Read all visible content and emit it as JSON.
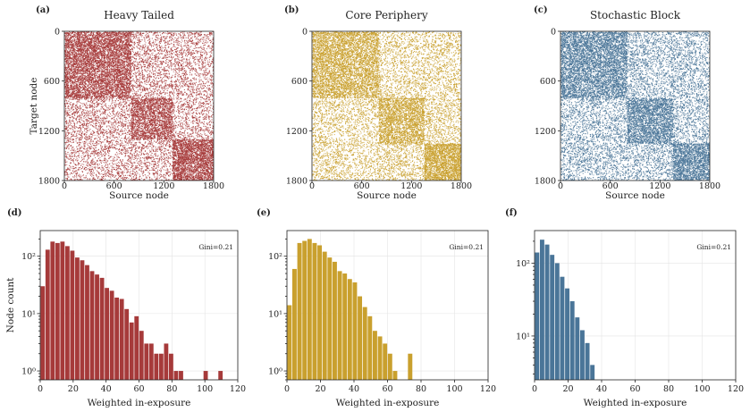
{
  "figure": {
    "colors": {
      "heavy": "#a63a3a",
      "core": "#c9a02e",
      "block": "#4a7598"
    }
  },
  "chart_data": [
    {
      "type": "scatter",
      "panel": "(a)",
      "title": "Heavy Tailed",
      "xlabel": "Source node",
      "ylabel": "Target node",
      "xlim": [
        0,
        1800
      ],
      "ylim": [
        1800,
        0
      ],
      "xticks": [
        "0",
        "600",
        "1200",
        "1800"
      ],
      "yticks": [
        "0",
        "600",
        "1200",
        "1800"
      ],
      "color": "#a63a3a",
      "blocks": [
        {
          "range": [
            0,
            800
          ],
          "within_density": 0.85,
          "between_density": 0.45
        },
        {
          "range": [
            800,
            1300
          ],
          "within_density": 0.8,
          "between_density": 0.45
        },
        {
          "range": [
            1300,
            1800
          ],
          "within_density": 0.95,
          "between_density": 0.4
        }
      ]
    },
    {
      "type": "scatter",
      "panel": "(b)",
      "title": "Core Periphery",
      "xlabel": "Source node",
      "ylabel": "",
      "xlim": [
        0,
        1800
      ],
      "ylim": [
        1800,
        0
      ],
      "xticks": [
        "0",
        "600",
        "1200",
        "1800"
      ],
      "yticks": [
        "0",
        "600",
        "1200",
        "1800"
      ],
      "color": "#c9a02e",
      "blocks": [
        {
          "range": [
            0,
            800
          ],
          "within_density": 0.7,
          "between_density": 0.4
        },
        {
          "range": [
            800,
            1350
          ],
          "within_density": 0.75,
          "between_density": 0.45
        },
        {
          "range": [
            1350,
            1800
          ],
          "within_density": 1.0,
          "between_density": 0.5
        }
      ]
    },
    {
      "type": "scatter",
      "panel": "(c)",
      "title": "Stochastic Block",
      "xlabel": "Source node",
      "ylabel": "",
      "xlim": [
        0,
        1800
      ],
      "ylim": [
        1800,
        0
      ],
      "xticks": [
        "0",
        "600",
        "1200",
        "1800"
      ],
      "yticks": [
        "0",
        "600",
        "1200",
        "1800"
      ],
      "color": "#4a7598",
      "blocks": [
        {
          "range": [
            0,
            800
          ],
          "within_density": 0.75,
          "between_density": 0.45
        },
        {
          "range": [
            800,
            1350
          ],
          "within_density": 0.8,
          "between_density": 0.45
        },
        {
          "range": [
            1350,
            1800
          ],
          "within_density": 0.85,
          "between_density": 0.45
        }
      ]
    },
    {
      "type": "bar",
      "panel": "(d)",
      "xlabel": "Weighted in-exposure",
      "ylabel": "Node count",
      "xlim": [
        0,
        120
      ],
      "yscale": "log",
      "ylim": [
        0.7,
        280
      ],
      "xticks": [
        0,
        20,
        40,
        60,
        80,
        100,
        120
      ],
      "yticks": [
        {
          "value": 1,
          "label": "10⁰"
        },
        {
          "value": 10,
          "label": "10¹"
        },
        {
          "value": 100,
          "label": "10²"
        }
      ],
      "annotation": "Gini=0.21",
      "color": "#a63a3a",
      "bin_width": 3,
      "x": [
        1.5,
        4.5,
        7.5,
        10.5,
        13.5,
        16.5,
        19.5,
        22.5,
        25.5,
        28.5,
        31.5,
        34.5,
        37.5,
        40.5,
        43.5,
        46.5,
        49.5,
        52.5,
        55.5,
        58.5,
        61.5,
        64.5,
        67.5,
        70.5,
        73.5,
        76.5,
        79.5,
        82.5,
        85.5,
        100.5,
        109.5
      ],
      "values": [
        30,
        130,
        180,
        170,
        180,
        150,
        125,
        95,
        85,
        70,
        55,
        48,
        42,
        28,
        25,
        19,
        18,
        12,
        7,
        9,
        5,
        3,
        3,
        2,
        2,
        3,
        2,
        1,
        1,
        1,
        1
      ]
    },
    {
      "type": "bar",
      "panel": "(e)",
      "xlabel": "Weighted in-exposure",
      "ylabel": "",
      "xlim": [
        0,
        120
      ],
      "yscale": "log",
      "ylim": [
        0.7,
        280
      ],
      "xticks": [
        0,
        20,
        40,
        60,
        80,
        100,
        120
      ],
      "yticks": [
        {
          "value": 1,
          "label": "10⁰"
        },
        {
          "value": 10,
          "label": "10¹"
        },
        {
          "value": 100,
          "label": "10²"
        }
      ],
      "annotation": "Gini=0.21",
      "color": "#c9a02e",
      "bin_width": 3,
      "x": [
        1.5,
        4.5,
        7.5,
        10.5,
        13.5,
        16.5,
        19.5,
        22.5,
        25.5,
        28.5,
        31.5,
        34.5,
        37.5,
        40.5,
        43.5,
        46.5,
        49.5,
        52.5,
        55.5,
        58.5,
        61.5,
        64.5,
        73.5
      ],
      "values": [
        14,
        60,
        170,
        185,
        200,
        170,
        155,
        120,
        95,
        80,
        55,
        50,
        40,
        35,
        20,
        13,
        9,
        5,
        4,
        3,
        2,
        1,
        2
      ]
    },
    {
      "type": "bar",
      "panel": "(f)",
      "xlabel": "Weighted in-exposure",
      "ylabel": "",
      "xlim": [
        0,
        120
      ],
      "yscale": "log",
      "ylim": [
        2.5,
        280
      ],
      "xticks": [
        0,
        20,
        40,
        60,
        80,
        100,
        120
      ],
      "yticks": [
        {
          "value": 10,
          "label": "10¹"
        },
        {
          "value": 100,
          "label": "10²"
        }
      ],
      "annotation": "Gini=0.21",
      "color": "#4a7598",
      "bin_width": 3,
      "x": [
        1.5,
        4.5,
        7.5,
        10.5,
        13.5,
        16.5,
        19.5,
        22.5,
        25.5,
        28.5,
        31.5,
        34.5
      ],
      "values": [
        140,
        210,
        180,
        130,
        100,
        65,
        45,
        30,
        18,
        12,
        8,
        4
      ]
    }
  ]
}
